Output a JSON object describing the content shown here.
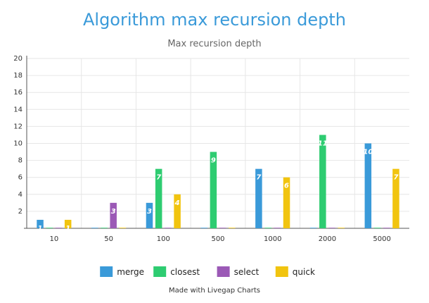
{
  "chart_data": {
    "type": "bar",
    "title": "Algorithm max recursion depth",
    "subtitle": "Max recursion depth",
    "xlabel": "",
    "ylabel": "",
    "categories": [
      "10",
      "50",
      "100",
      "500",
      "1000",
      "2000",
      "5000"
    ],
    "ylim": [
      0,
      20
    ],
    "yticks": [
      2,
      4,
      6,
      8,
      10,
      12,
      14,
      16,
      18,
      20
    ],
    "grid": true,
    "legend": "bottom-center",
    "series": [
      {
        "name": "merge",
        "color": "#3a9ad9",
        "values": [
          1,
          0,
          3,
          0,
          7,
          0,
          10
        ]
      },
      {
        "name": "closest",
        "color": "#2ecc71",
        "values": [
          0,
          0,
          7,
          9,
          0,
          11,
          0
        ]
      },
      {
        "name": "select",
        "color": "#9b59b6",
        "values": [
          0,
          3,
          0,
          0,
          0,
          0,
          0
        ]
      },
      {
        "name": "quick",
        "color": "#f1c40f",
        "values": [
          1,
          0,
          4,
          0,
          6,
          0,
          7
        ]
      }
    ]
  },
  "credit": "Made with Livegap Charts"
}
